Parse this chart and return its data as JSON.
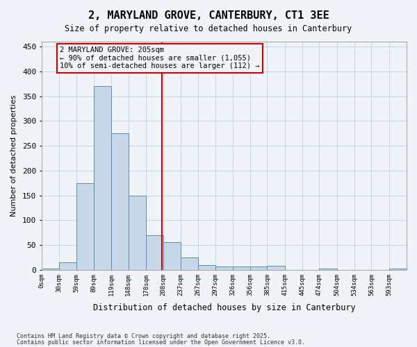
{
  "title": "2, MARYLAND GROVE, CANTERBURY, CT1 3EE",
  "subtitle": "Size of property relative to detached houses in Canterbury",
  "xlabel": "Distribution of detached houses by size in Canterbury",
  "ylabel": "Number of detached properties",
  "footnote1": "Contains HM Land Registry data © Crown copyright and database right 2025.",
  "footnote2": "Contains public sector information licensed under the Open Government Licence v3.0.",
  "bar_color": "#c8d8e8",
  "bar_edge_color": "#5a8ab0",
  "annotation_box_color": "#cc0000",
  "vline_color": "#cc0000",
  "annotation_line1": "2 MARYLAND GROVE: 205sqm",
  "annotation_line2": "← 90% of detached houses are smaller (1,055)",
  "annotation_line3": "10% of semi-detached houses are larger (112) →",
  "annotation_fontsize": 7.5,
  "grid_color": "#c8d8e8",
  "background_color": "#f0f4f8",
  "ylim": [
    0,
    460
  ],
  "yticks": [
    0,
    50,
    100,
    150,
    200,
    250,
    300,
    350,
    400,
    450
  ],
  "bin_edges": [
    0,
    30,
    59,
    89,
    119,
    148,
    178,
    208,
    237,
    267,
    297,
    326,
    356,
    385,
    415,
    445,
    474,
    504,
    534,
    563,
    593,
    623
  ],
  "tick_labels": [
    "0sqm",
    "30sqm",
    "59sqm",
    "89sqm",
    "119sqm",
    "148sqm",
    "178sqm",
    "208sqm",
    "237sqm",
    "267sqm",
    "297sqm",
    "326sqm",
    "356sqm",
    "385sqm",
    "415sqm",
    "445sqm",
    "474sqm",
    "504sqm",
    "534sqm",
    "563sqm",
    "593sqm"
  ],
  "bar_heights": [
    2,
    15,
    175,
    370,
    275,
    150,
    70,
    55,
    25,
    10,
    7,
    6,
    6,
    8,
    0,
    0,
    2,
    0,
    0,
    0,
    2
  ],
  "property_size": 205,
  "title_fontsize": 11,
  "subtitle_fontsize": 8.5,
  "ylabel_fontsize": 8,
  "xlabel_fontsize": 8.5
}
